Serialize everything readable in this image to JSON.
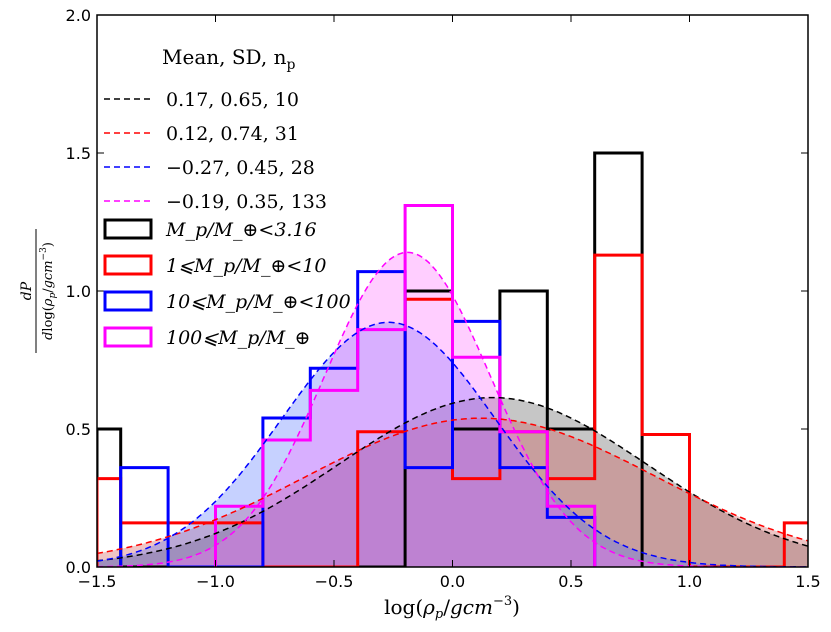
{
  "chart_data": {
    "type": "histogram",
    "xlabel": "log(ρ_p/gcm^-3)",
    "ylabel": "dP / dlog(ρ_p/gcm^-3)",
    "xlim": [
      -1.5,
      1.5
    ],
    "ylim": [
      0.0,
      2.0
    ],
    "xticks": [
      -1.5,
      -1.0,
      -0.5,
      0.0,
      0.5,
      1.0,
      1.5
    ],
    "xtick_labels": [
      "−1.5",
      "−1.0",
      "−0.5",
      "0.0",
      "0.5",
      "1.0",
      "1.5"
    ],
    "yticks": [
      0.0,
      0.5,
      1.0,
      1.5,
      2.0
    ],
    "ytick_labels": [
      "0.0",
      "0.5",
      "1.0",
      "1.5",
      "2.0"
    ],
    "legend": {
      "title": "Mean, SD, n",
      "title_sub": "p",
      "position": "upper-left",
      "fits": [
        {
          "label": "0.17, 0.65, 10",
          "color": "#000000"
        },
        {
          "label": "0.12, 0.74, 31",
          "color": "#ff0000"
        },
        {
          "label": "−0.27, 0.45, 28",
          "color": "#0000ff"
        },
        {
          "label": "−0.19, 0.35, 133",
          "color": "#ff00ff"
        }
      ],
      "histograms": [
        {
          "label": "M_p/M_⊕<3.16",
          "color": "#000000"
        },
        {
          "label": "1⩽M_p/M_⊕<10",
          "color": "#ff0000"
        },
        {
          "label": "10⩽M_p/M_⊕<100",
          "color": "#0000ff"
        },
        {
          "label": "100⩽M_p/M_⊕",
          "color": "#ff00ff"
        }
      ]
    },
    "series": [
      {
        "name": "M_p/M_earth<3.16",
        "color": "#000000",
        "fill": "#4d4d4d",
        "gaussian": {
          "mean": 0.17,
          "sd": 0.65,
          "n": 10
        },
        "bins": [
          {
            "x0": -1.5,
            "x1": -1.4,
            "h": 0.5
          },
          {
            "x0": 0.2,
            "x1": 0.4,
            "h": 1.0
          },
          {
            "x0": 0.6,
            "x1": 0.8,
            "h": 1.5
          }
        ],
        "steps": [
          [
            -1.5,
            0.5
          ],
          [
            -1.4,
            0.0
          ],
          [
            -0.2,
            1.0
          ],
          [
            0.0,
            0.5
          ],
          [
            0.2,
            1.0
          ],
          [
            0.4,
            0.5
          ],
          [
            0.6,
            1.5
          ],
          [
            0.8,
            0.0
          ]
        ]
      },
      {
        "name": "1<=M_p/M_earth<10",
        "color": "#ff0000",
        "fill": "#cc4a4a",
        "gaussian": {
          "mean": 0.12,
          "sd": 0.74,
          "n": 31
        },
        "steps": [
          [
            -1.5,
            0.32
          ],
          [
            -1.4,
            0.16
          ],
          [
            -0.8,
            0.0
          ],
          [
            -0.4,
            0.49
          ],
          [
            -0.2,
            0.97
          ],
          [
            0.0,
            0.32
          ],
          [
            0.2,
            0.49
          ],
          [
            0.4,
            0.32
          ],
          [
            0.6,
            1.13
          ],
          [
            0.8,
            0.48
          ],
          [
            1.0,
            0.0
          ],
          [
            1.4,
            0.16
          ],
          [
            1.5,
            0.16
          ]
        ]
      },
      {
        "name": "10<=M_p/M_earth<100",
        "color": "#0000ff",
        "fill": "#4f6fff",
        "gaussian": {
          "mean": -0.27,
          "sd": 0.45,
          "n": 28
        },
        "steps": [
          [
            -1.4,
            0.36
          ],
          [
            -1.2,
            0.0
          ],
          [
            -0.8,
            0.54
          ],
          [
            -0.6,
            0.72
          ],
          [
            -0.4,
            1.07
          ],
          [
            -0.2,
            0.36
          ],
          [
            0.0,
            0.89
          ],
          [
            0.2,
            0.36
          ],
          [
            0.4,
            0.18
          ],
          [
            0.6,
            0.0
          ]
        ]
      },
      {
        "name": "100<=M_p/M_earth",
        "color": "#ff00ff",
        "fill": "#ff66ff",
        "gaussian": {
          "mean": -0.19,
          "sd": 0.35,
          "n": 133
        },
        "steps": [
          [
            -1.0,
            0.22
          ],
          [
            -0.8,
            0.46
          ],
          [
            -0.6,
            0.64
          ],
          [
            -0.4,
            0.86
          ],
          [
            -0.2,
            1.31
          ],
          [
            0.0,
            0.76
          ],
          [
            0.2,
            0.49
          ],
          [
            0.4,
            0.22
          ],
          [
            0.6,
            0.0
          ]
        ]
      }
    ]
  }
}
